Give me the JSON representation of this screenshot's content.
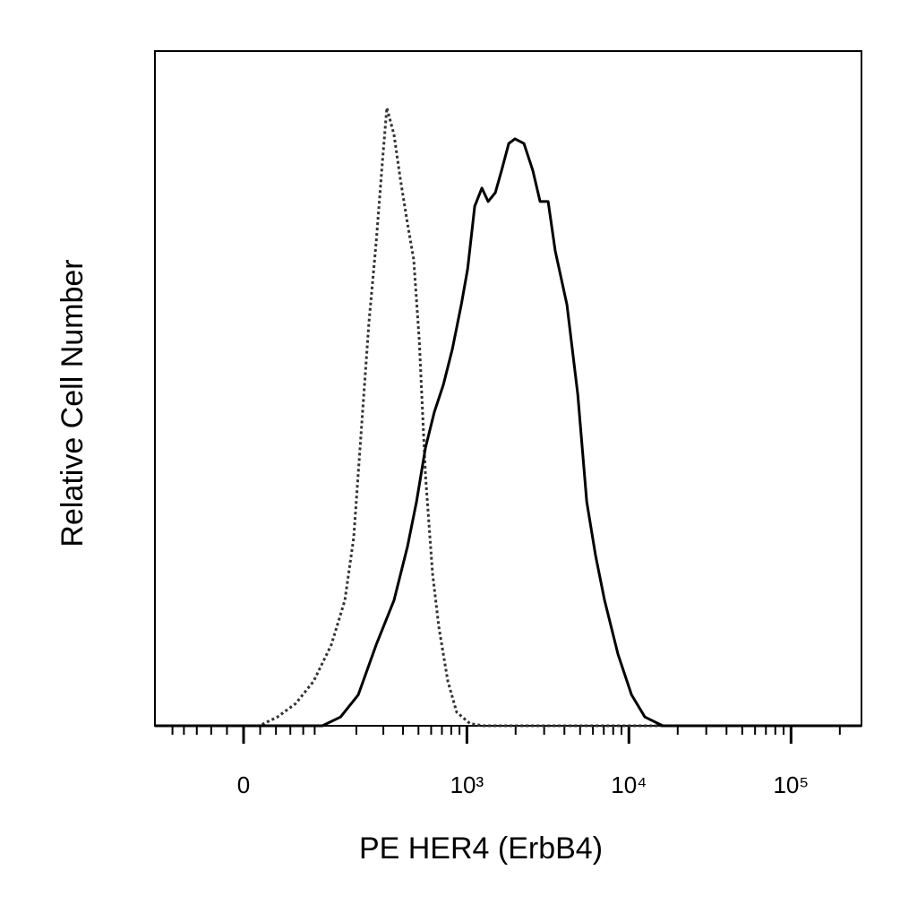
{
  "chart_data": {
    "type": "line",
    "x_label": "PE HER4 (ErbB4)",
    "y_label": "Relative Cell Number",
    "x_scale": "asinh",
    "asinh_cofactor": 84,
    "xlim": [
      -136,
      272000
    ],
    "ylim": [
      0,
      100
    ],
    "xticks": [
      0,
      {
        "value": 1000,
        "label": "10³"
      },
      {
        "value": 10000,
        "label": "10⁴"
      },
      {
        "value": 100000,
        "label": "10⁵"
      }
    ],
    "xminorticks": [
      -100,
      -80,
      -60,
      -40,
      -20,
      20,
      40,
      60,
      80,
      100,
      200,
      300,
      400,
      500,
      600,
      700,
      800,
      900,
      2000,
      3000,
      4000,
      5000,
      6000,
      7000,
      8000,
      9000,
      20000,
      30000,
      40000,
      50000,
      60000,
      70000,
      80000,
      90000,
      200000
    ],
    "series": [
      {
        "color": "#333333",
        "style": "dotted",
        "x": [
          -136,
          19,
          42,
          68,
          98,
          134,
          167,
          192,
          220,
          242,
          270,
          296,
          316,
          351,
          385,
          427,
          467,
          506,
          553,
          612,
          670,
          762,
          865,
          1049,
          1271,
          272000
        ],
        "values": [
          0,
          0,
          1.3,
          3.3,
          6.6,
          12.0,
          18.6,
          27.9,
          46.5,
          59.8,
          71.7,
          83.7,
          91.6,
          87.6,
          81.0,
          74.4,
          69.1,
          57.1,
          37.2,
          22.6,
          14.6,
          6.6,
          2.0,
          0.3,
          0,
          0
        ]
      },
      {
        "color": "#000000",
        "style": "solid",
        "x": [
          -136,
          115,
          156,
          206,
          270,
          351,
          427,
          486,
          553,
          628,
          714,
          812,
          923,
          1010,
          1117,
          1238,
          1353,
          1499,
          1638,
          1814,
          1982,
          2251,
          2554,
          2831,
          3175,
          3511,
          4150,
          4838,
          5494,
          6233,
          7081,
          8568,
          10374,
          12550,
          16170,
          272000
        ],
        "values": [
          0,
          0,
          1.3,
          4.6,
          12.0,
          18.6,
          26.6,
          33.2,
          41.2,
          46.5,
          50.5,
          55.8,
          62.4,
          67.7,
          77.0,
          79.7,
          77.7,
          79.0,
          82.3,
          86.3,
          87.0,
          86.3,
          82.3,
          77.7,
          77.7,
          70.4,
          62.4,
          49.1,
          33.2,
          25.2,
          18.6,
          10.6,
          4.6,
          1.3,
          0,
          0
        ]
      }
    ]
  }
}
